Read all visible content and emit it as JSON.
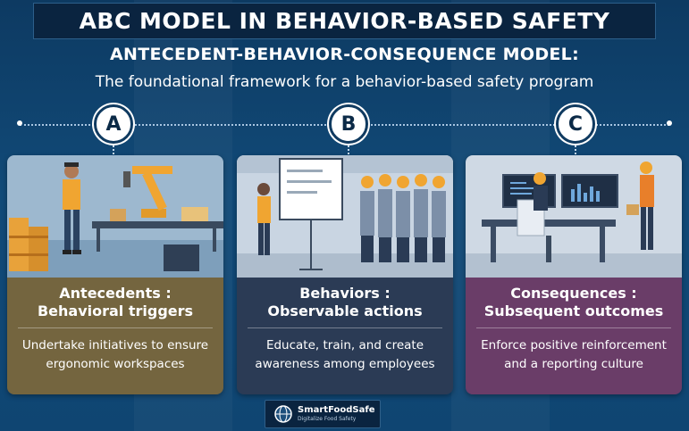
{
  "title": "ABC MODEL IN BEHAVIOR-BASED SAFETY",
  "subtitle": "ANTECEDENT-BEHAVIOR-CONSEQUENCE MODEL:",
  "tagline": "The foundational framework for a behavior-based safety program",
  "stages": [
    {
      "letter": "A",
      "heading_line1": "Antecedents :",
      "heading_line2": "Behavioral triggers",
      "desc_line1": "Undertake initiatives to ensure",
      "desc_line2": "ergonomic workspaces",
      "color": "#74653f",
      "illustration": "worker-robotic-arm-conveyor"
    },
    {
      "letter": "B",
      "heading_line1": "Behaviors :",
      "heading_line2": "Observable actions",
      "desc_line1": "Educate, train, and create",
      "desc_line2": "awareness among employees",
      "color": "#2b3b55",
      "illustration": "safety-training-whiteboard"
    },
    {
      "letter": "C",
      "heading_line1": "Consequences :",
      "heading_line2": "Subsequent outcomes",
      "desc_line1": "Enforce positive reinforcement",
      "desc_line2": "and a reporting culture",
      "color": "#6a3d68",
      "illustration": "control-room-monitors"
    }
  ],
  "logo": {
    "name": "SmartFoodSafe",
    "tagline": "Digitalize Food Safety",
    "icon": "globe-logo-icon"
  }
}
